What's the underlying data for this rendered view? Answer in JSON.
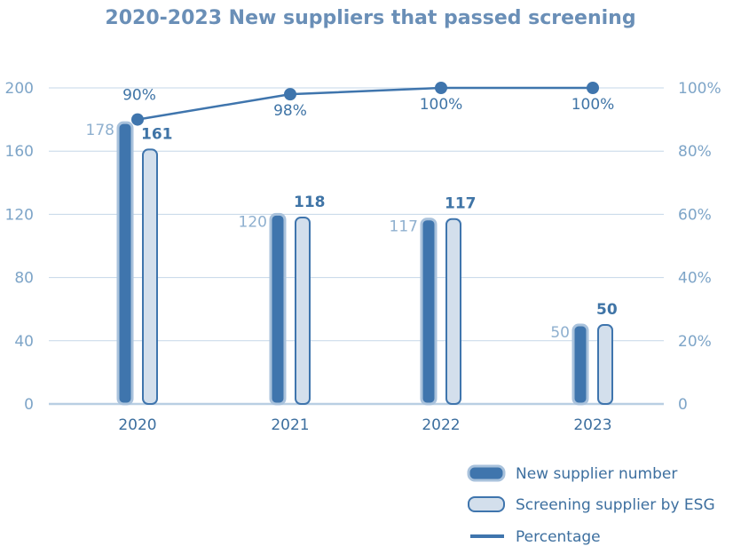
{
  "chart_data": {
    "type": "bar",
    "title": "2020-2023 New suppliers that passed screening",
    "categories": [
      "2020",
      "2021",
      "2022",
      "2023"
    ],
    "series": [
      {
        "name": "New supplier number",
        "type": "bar",
        "values": [
          178,
          120,
          117,
          50
        ]
      },
      {
        "name": "Screening supplier by ESG",
        "type": "bar",
        "values": [
          161,
          118,
          117,
          50
        ]
      },
      {
        "name": "Percentage",
        "type": "line",
        "axis": "right",
        "values": [
          90,
          98,
          100,
          100
        ],
        "labels": [
          "90%",
          "98%",
          "100%",
          "100%"
        ]
      }
    ],
    "y_left": {
      "ylim": [
        0,
        200
      ],
      "ticks": [
        "0",
        "40",
        "80",
        "120",
        "160",
        "200"
      ]
    },
    "y_right": {
      "ylim": [
        0,
        100
      ],
      "ticks": [
        "0",
        "20%",
        "40%",
        "60%",
        "80%",
        "100%"
      ]
    },
    "grid": true,
    "legend_position": "bottom-right",
    "colors": {
      "new": "#3f75ad",
      "new_border": "#a9c2dc",
      "esg": "#d3dfec",
      "esg_border": "#3f75ad",
      "line": "#3f75ad",
      "grid": "#c5d7e8",
      "axis": "#b9cfe3"
    }
  }
}
